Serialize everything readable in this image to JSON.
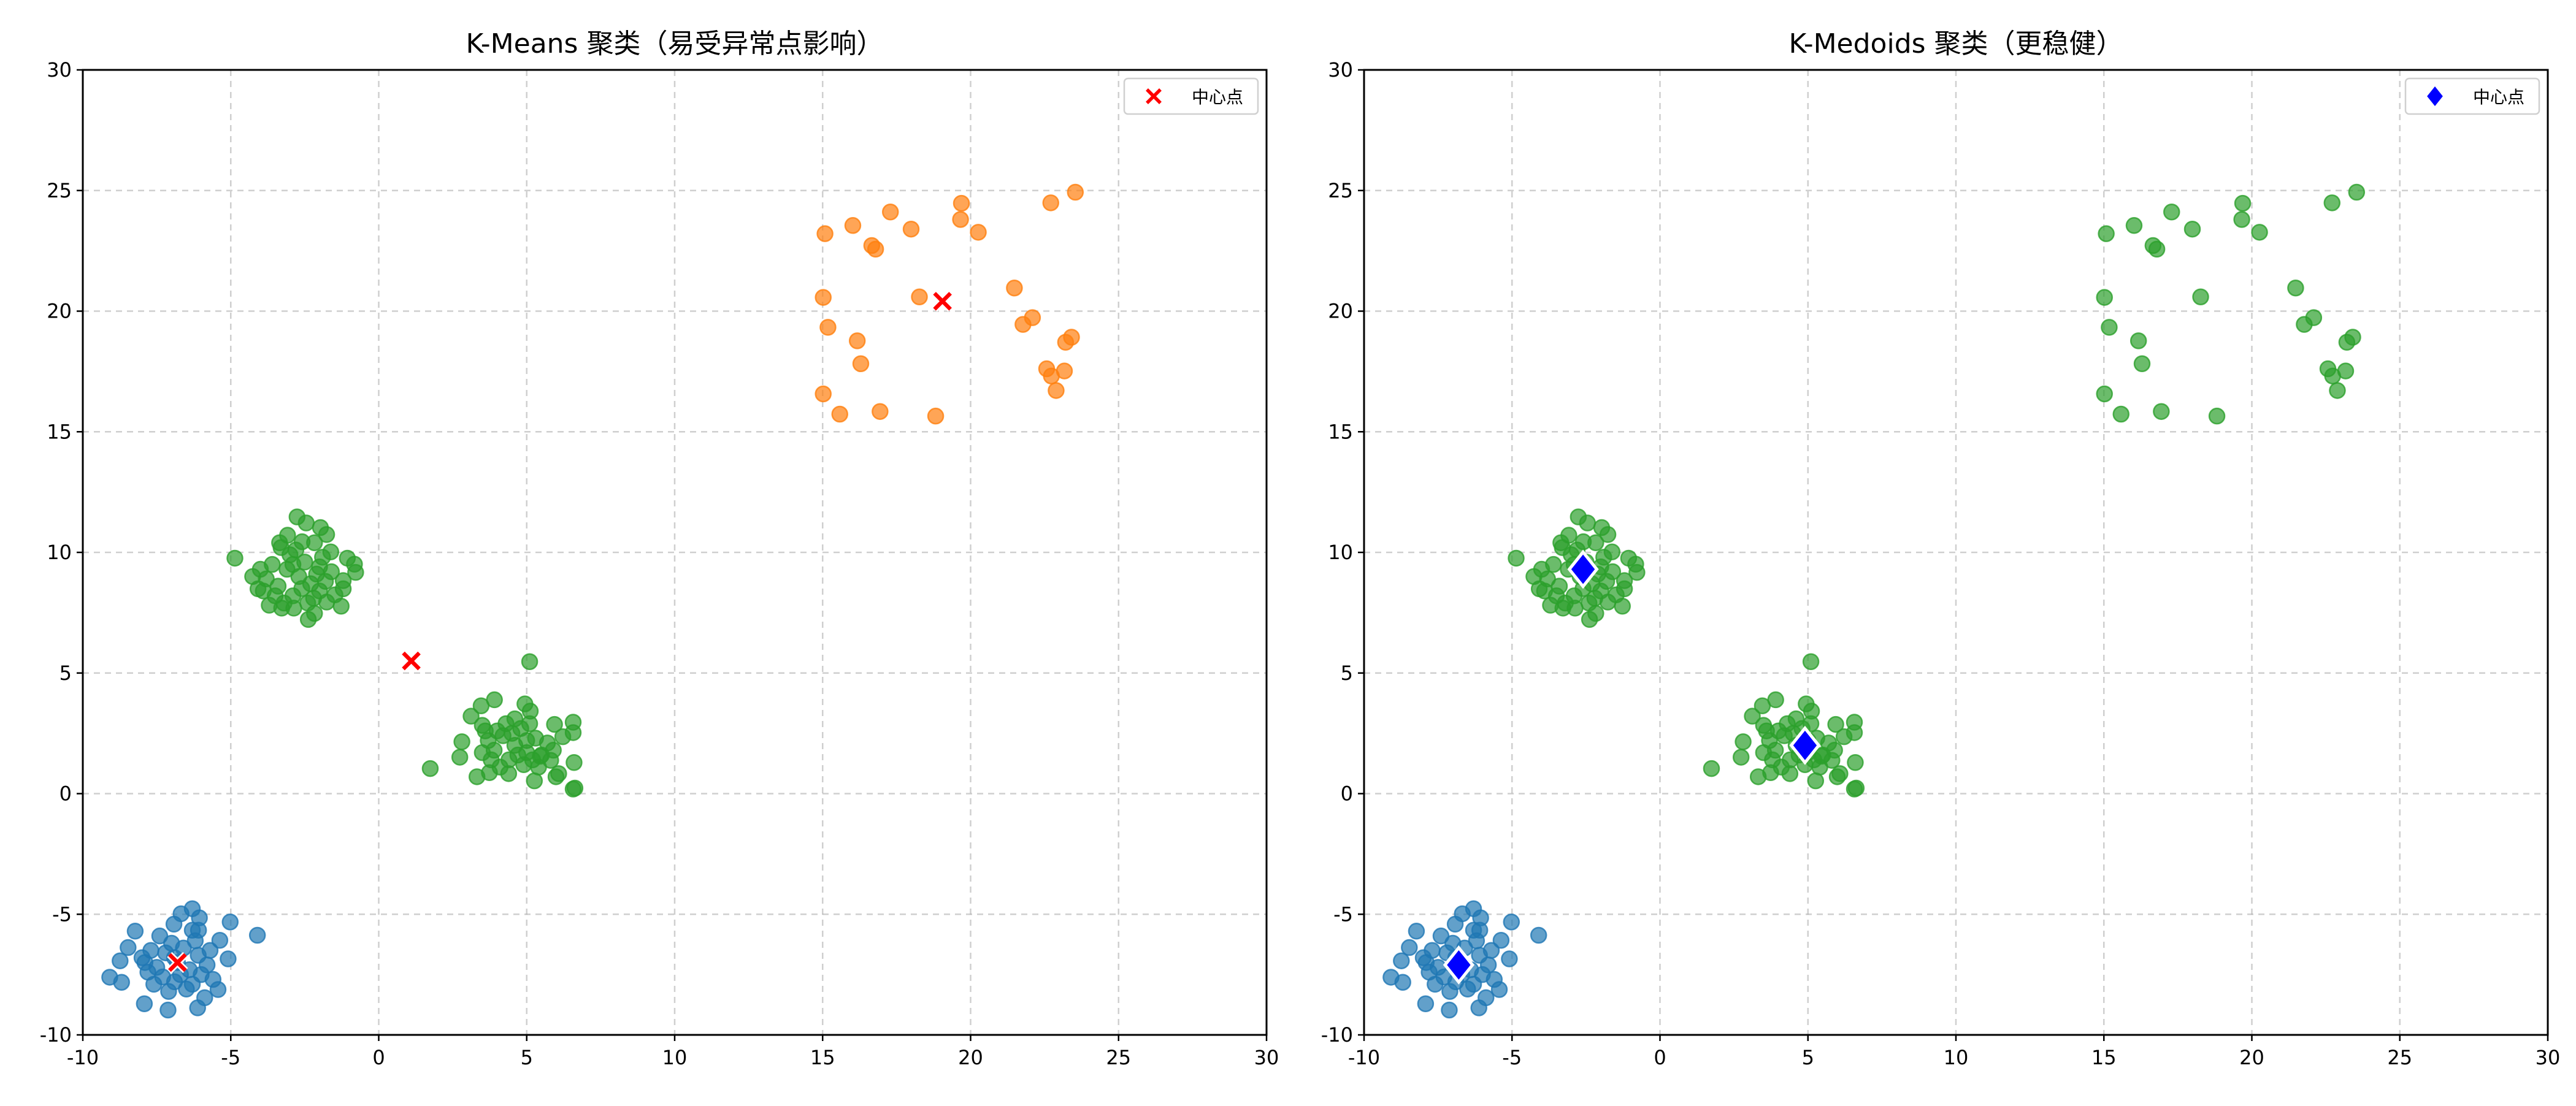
{
  "colors": {
    "blue": "#1f77b4",
    "orange": "#ff7f0e",
    "green": "#2ca02c",
    "kmeans_center": "#ff0000",
    "medoid": "#0000ff",
    "grid": "#b0b0b0"
  },
  "points": {
    "A": [
      [
        -5.02,
        -5.32
      ],
      [
        -4.1,
        -5.87
      ],
      [
        -9.09,
        -7.61
      ],
      [
        -8.69,
        -7.82
      ],
      [
        -8.74,
        -6.93
      ],
      [
        -8.23,
        -5.7
      ],
      [
        -6.3,
        -4.77
      ],
      [
        -6.06,
        -5.15
      ],
      [
        -6.68,
        -4.98
      ],
      [
        -5.43,
        -8.12
      ],
      [
        -7.12,
        -8.97
      ],
      [
        -7.92,
        -8.71
      ],
      [
        -6.12,
        -8.88
      ],
      [
        -5.88,
        -8.46
      ],
      [
        -5.37,
        -6.08
      ],
      [
        -5.09,
        -6.85
      ],
      [
        -8.47,
        -6.38
      ],
      [
        -6.92,
        -5.41
      ],
      [
        -6.3,
        -5.66
      ],
      [
        -6.09,
        -5.66
      ],
      [
        -6.8,
        -7.0
      ],
      [
        -7.2,
        -6.6
      ],
      [
        -6.4,
        -7.3
      ],
      [
        -7.5,
        -7.2
      ],
      [
        -6.1,
        -6.7
      ],
      [
        -6.9,
        -7.8
      ],
      [
        -7.7,
        -6.5
      ],
      [
        -6.3,
        -7.9
      ],
      [
        -7.0,
        -6.2
      ],
      [
        -5.8,
        -7.1
      ],
      [
        -7.9,
        -7.0
      ],
      [
        -6.6,
        -6.4
      ],
      [
        -7.3,
        -7.6
      ],
      [
        -6.0,
        -7.5
      ],
      [
        -7.6,
        -7.9
      ],
      [
        -6.5,
        -8.1
      ],
      [
        -7.1,
        -8.2
      ],
      [
        -5.7,
        -6.5
      ],
      [
        -8.0,
        -6.8
      ],
      [
        -6.2,
        -6.1
      ],
      [
        -7.4,
        -5.9
      ],
      [
        -5.6,
        -7.7
      ],
      [
        -6.9,
        -6.8
      ],
      [
        -7.8,
        -7.4
      ],
      [
        -6.7,
        -7.5
      ]
    ],
    "B": [
      [
        -4.86,
        9.76
      ],
      [
        -2.76,
        11.47
      ],
      [
        -2.45,
        11.22
      ],
      [
        -1.97,
        11.03
      ],
      [
        -1.76,
        10.74
      ],
      [
        -3.08,
        10.71
      ],
      [
        -3.35,
        10.4
      ],
      [
        -0.82,
        9.51
      ],
      [
        -0.78,
        9.17
      ],
      [
        -1.06,
        9.76
      ],
      [
        -1.2,
        8.83
      ],
      [
        -1.2,
        8.49
      ],
      [
        -1.27,
        7.77
      ],
      [
        -1.48,
        8.24
      ],
      [
        -4.26,
        9.0
      ],
      [
        -4.08,
        8.49
      ],
      [
        -3.7,
        7.81
      ],
      [
        -3.28,
        7.69
      ],
      [
        -2.87,
        7.69
      ],
      [
        -2.38,
        7.22
      ],
      [
        -2.17,
        7.47
      ],
      [
        -1.76,
        7.94
      ],
      [
        -2.59,
        10.44
      ],
      [
        -2.17,
        10.4
      ],
      [
        -1.62,
        10.02
      ],
      [
        -2.7,
        9.0
      ],
      [
        -3.1,
        9.3
      ],
      [
        -2.3,
        8.7
      ],
      [
        -3.4,
        8.6
      ],
      [
        -2.0,
        9.4
      ],
      [
        -2.9,
        8.2
      ],
      [
        -3.6,
        9.5
      ],
      [
        -2.2,
        8.1
      ],
      [
        -3.0,
        9.9
      ],
      [
        -1.8,
        8.8
      ],
      [
        -3.8,
        8.9
      ],
      [
        -2.5,
        9.6
      ],
      [
        -3.2,
        7.9
      ],
      [
        -2.6,
        8.5
      ],
      [
        -1.9,
        9.8
      ],
      [
        -3.5,
        8.2
      ],
      [
        -2.1,
        9.1
      ],
      [
        -2.8,
        10.1
      ],
      [
        -4.0,
        9.3
      ],
      [
        -1.6,
        9.2
      ],
      [
        -3.3,
        10.2
      ],
      [
        -2.4,
        7.9
      ],
      [
        -3.9,
        8.4
      ],
      [
        -2.9,
        9.5
      ],
      [
        -2.0,
        8.4
      ]
    ],
    "C": [
      [
        5.1,
        5.47
      ],
      [
        3.91,
        3.89
      ],
      [
        3.46,
        3.64
      ],
      [
        3.12,
        3.21
      ],
      [
        3.5,
        2.83
      ],
      [
        2.81,
        2.15
      ],
      [
        2.74,
        1.51
      ],
      [
        1.74,
        1.04
      ],
      [
        3.32,
        0.7
      ],
      [
        3.74,
        0.87
      ],
      [
        4.39,
        0.83
      ],
      [
        5.26,
        0.53
      ],
      [
        4.94,
        3.72
      ],
      [
        5.12,
        3.42
      ],
      [
        5.94,
        2.87
      ],
      [
        6.57,
        2.96
      ],
      [
        6.57,
        2.53
      ],
      [
        6.22,
        2.36
      ],
      [
        6.6,
        1.29
      ],
      [
        5.99,
        0.7
      ],
      [
        6.08,
        0.83
      ],
      [
        6.63,
        0.23
      ],
      [
        6.57,
        0.19
      ],
      [
        5.81,
        1.38
      ],
      [
        5.46,
        1.55
      ],
      [
        4.6,
        2.0
      ],
      [
        4.2,
        2.4
      ],
      [
        5.0,
        1.7
      ],
      [
        3.9,
        1.8
      ],
      [
        5.3,
        2.3
      ],
      [
        4.4,
        1.4
      ],
      [
        4.8,
        2.7
      ],
      [
        3.7,
        2.2
      ],
      [
        5.5,
        1.6
      ],
      [
        4.1,
        1.1
      ],
      [
        5.1,
        2.9
      ],
      [
        4.5,
        2.5
      ],
      [
        3.8,
        1.4
      ],
      [
        5.7,
        2.1
      ],
      [
        4.9,
        1.2
      ],
      [
        4.3,
        2.9
      ],
      [
        5.4,
        1.1
      ],
      [
        3.5,
        1.7
      ],
      [
        4.7,
        1.6
      ],
      [
        5.9,
        1.8
      ],
      [
        4.0,
        2.6
      ],
      [
        5.2,
        1.4
      ],
      [
        4.6,
        3.1
      ],
      [
        3.6,
        2.6
      ],
      [
        5.0,
        2.2
      ]
    ],
    "D": [
      [
        19.69,
        24.47
      ],
      [
        23.54,
        24.93
      ],
      [
        22.71,
        24.49
      ],
      [
        15.08,
        23.21
      ],
      [
        16.02,
        23.55
      ],
      [
        17.29,
        24.11
      ],
      [
        17.99,
        23.4
      ],
      [
        19.66,
        23.8
      ],
      [
        20.26,
        23.27
      ],
      [
        16.66,
        22.72
      ],
      [
        16.79,
        22.57
      ],
      [
        15.02,
        20.57
      ],
      [
        18.27,
        20.59
      ],
      [
        21.48,
        20.96
      ],
      [
        15.18,
        19.33
      ],
      [
        21.77,
        19.45
      ],
      [
        22.09,
        19.73
      ],
      [
        16.17,
        18.77
      ],
      [
        23.41,
        18.92
      ],
      [
        23.21,
        18.71
      ],
      [
        16.29,
        17.82
      ],
      [
        22.57,
        17.61
      ],
      [
        23.17,
        17.52
      ],
      [
        22.73,
        17.31
      ],
      [
        22.89,
        16.71
      ],
      [
        15.02,
        16.57
      ],
      [
        15.58,
        15.73
      ],
      [
        16.94,
        15.84
      ],
      [
        18.82,
        15.65
      ]
    ]
  },
  "chart_data": [
    {
      "type": "scatter",
      "title": "K-Means 聚类（易受异常点影响）",
      "xlabel": "",
      "ylabel": "",
      "xlim": [
        -10,
        30
      ],
      "ylim": [
        -10,
        30
      ],
      "xticks": [
        "-10",
        "-5",
        "0",
        "5",
        "10",
        "15",
        "20",
        "25",
        "30"
      ],
      "yticks": [
        "-10",
        "-5",
        "0",
        "5",
        "10",
        "15",
        "20",
        "25",
        "30"
      ],
      "grid": true,
      "cluster_colors": {
        "A": "blue",
        "B": "green",
        "C": "green",
        "D": "orange"
      },
      "centers": {
        "marker": "x",
        "color": "kmeans_center",
        "points": [
          [
            -6.8,
            -7.0
          ],
          [
            1.1,
            5.5
          ],
          [
            19.05,
            20.41
          ]
        ]
      },
      "legend": {
        "position": "upper-right",
        "entries": [
          {
            "label": "中心点",
            "marker": "x"
          }
        ]
      }
    },
    {
      "type": "scatter",
      "title": "K-Medoids 聚类（更稳健）",
      "xlabel": "",
      "ylabel": "",
      "xlim": [
        -10,
        30
      ],
      "ylim": [
        -10,
        30
      ],
      "xticks": [
        "-10",
        "-5",
        "0",
        "5",
        "10",
        "15",
        "20",
        "25",
        "30"
      ],
      "yticks": [
        "-10",
        "-5",
        "0",
        "5",
        "10",
        "15",
        "20",
        "25",
        "30"
      ],
      "grid": true,
      "cluster_colors": {
        "A": "blue",
        "B": "green",
        "C": "green",
        "D": "green"
      },
      "centers": {
        "marker": "diamond",
        "color": "medoid",
        "points": [
          [
            -6.8,
            -7.1
          ],
          [
            -2.6,
            9.3
          ],
          [
            4.9,
            2.0
          ]
        ]
      },
      "legend": {
        "position": "upper-right",
        "entries": [
          {
            "label": "中心点",
            "marker": "diamond"
          }
        ]
      }
    }
  ]
}
